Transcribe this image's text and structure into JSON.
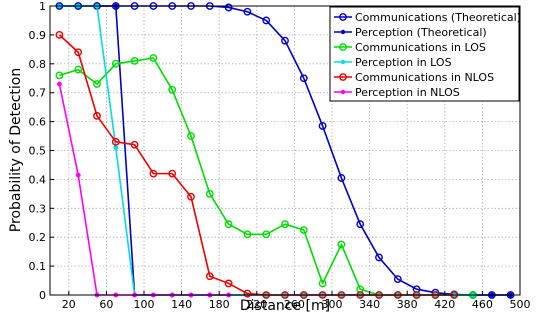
{
  "chart_data": {
    "type": "line",
    "xlabel": "Distance [m]",
    "ylabel": "Probability of Detection",
    "xlim": [
      0,
      500
    ],
    "ylim": [
      0,
      1
    ],
    "xticks": [
      20,
      60,
      100,
      140,
      180,
      220,
      260,
      300,
      340,
      380,
      420,
      460,
      500
    ],
    "yticks": [
      0,
      0.1,
      0.2,
      0.3,
      0.4,
      0.5,
      0.6,
      0.7,
      0.8,
      0.9,
      1
    ],
    "grid": true,
    "legend_position": "top-right",
    "series": [
      {
        "name": "Communications (Theoretical)",
        "color": "#0000cc",
        "marker": "open-circle",
        "x": [
          10,
          30,
          50,
          70,
          90,
          110,
          130,
          150,
          170,
          190,
          210,
          230,
          250,
          270,
          290,
          310,
          330,
          350,
          370,
          390,
          410,
          430,
          450,
          470,
          490
        ],
        "y": [
          1,
          1,
          1,
          1,
          1,
          1,
          1,
          1,
          1,
          0.995,
          0.98,
          0.95,
          0.88,
          0.75,
          0.585,
          0.405,
          0.245,
          0.13,
          0.055,
          0.02,
          0.008,
          0.002,
          0,
          0,
          0
        ]
      },
      {
        "name": "Perception (Theoretical)",
        "color": "#0000cc",
        "marker": "filled-dot",
        "x": [
          10,
          30,
          50,
          70,
          90,
          110,
          130,
          150,
          170,
          190,
          210,
          230,
          250,
          270,
          290,
          310,
          330,
          350,
          370,
          390,
          410,
          430,
          450,
          470,
          490
        ],
        "y": [
          1,
          1,
          1,
          1,
          0,
          0,
          0,
          0,
          0,
          0,
          0,
          0,
          0,
          0,
          0,
          0,
          0,
          0,
          0,
          0,
          0,
          0,
          0,
          0,
          0
        ]
      },
      {
        "name": "Communications in LOS",
        "color": "#00dd00",
        "marker": "open-circle",
        "x": [
          10,
          30,
          50,
          70,
          90,
          110,
          130,
          150,
          170,
          190,
          210,
          230,
          250,
          270,
          290,
          310,
          330,
          350,
          370,
          390,
          410,
          430,
          450
        ],
        "y": [
          0.76,
          0.78,
          0.73,
          0.8,
          0.81,
          0.82,
          0.71,
          0.55,
          0.35,
          0.245,
          0.21,
          0.21,
          0.245,
          0.225,
          0.04,
          0.175,
          0.02,
          0,
          0,
          0,
          0,
          0,
          0
        ]
      },
      {
        "name": "Perception in LOS",
        "color": "#00dddd",
        "marker": "filled-dot",
        "x": [
          10,
          30,
          50,
          70,
          90,
          110,
          130,
          150,
          170,
          190,
          210,
          230,
          250,
          270,
          290,
          310,
          330,
          350,
          370,
          390,
          410,
          430,
          450
        ],
        "y": [
          1,
          1,
          1,
          0.51,
          0,
          0,
          0,
          0,
          0,
          0,
          0,
          0,
          0,
          0,
          0,
          0,
          0,
          0,
          0,
          0,
          0,
          0,
          0
        ]
      },
      {
        "name": "Communications in NLOS",
        "color": "#ee0000",
        "marker": "open-circle",
        "x": [
          10,
          30,
          50,
          70,
          90,
          110,
          130,
          150,
          170,
          190,
          210,
          230,
          250,
          270,
          290,
          310,
          330,
          350,
          370,
          390,
          410,
          430
        ],
        "y": [
          0.9,
          0.84,
          0.62,
          0.53,
          0.52,
          0.42,
          0.42,
          0.34,
          0.065,
          0.04,
          0.005,
          0,
          0,
          0,
          0,
          0,
          0,
          0,
          0,
          0,
          0,
          0
        ]
      },
      {
        "name": "Perception in NLOS",
        "color": "#ff00ff",
        "marker": "filled-dot",
        "x": [
          10,
          30,
          50,
          70,
          90,
          110,
          130,
          150,
          170,
          190
        ],
        "y": [
          0.73,
          0.415,
          0,
          0,
          0,
          0,
          0,
          0,
          0,
          0
        ]
      }
    ]
  }
}
